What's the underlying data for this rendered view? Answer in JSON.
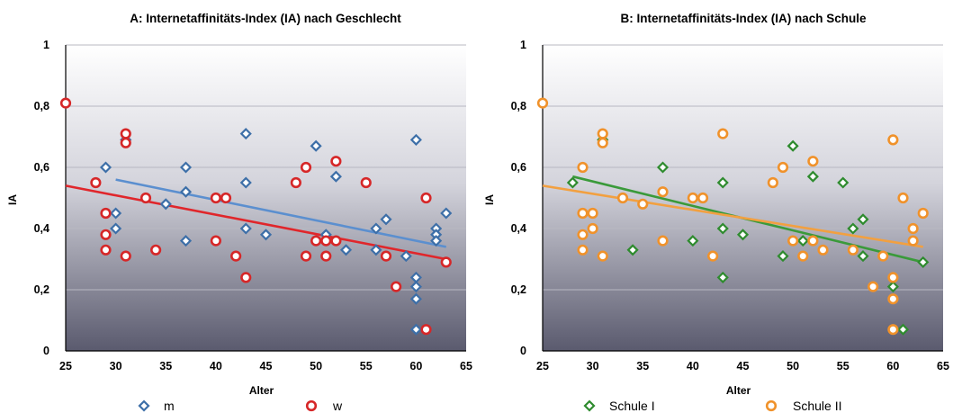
{
  "chart_data": [
    {
      "type": "scatter",
      "title": "A: Internetaffinitäts-Index (IA) nach Geschlecht",
      "xlabel": "Alter",
      "ylabel": "IA",
      "xlim": [
        25,
        65
      ],
      "ylim": [
        0,
        1
      ],
      "xticks": [
        "25",
        "30",
        "35",
        "40",
        "45",
        "50",
        "55",
        "60",
        "65"
      ],
      "yticks": [
        "0",
        "0,2",
        "0,4",
        "0,6",
        "0,8",
        "1"
      ],
      "grid": true,
      "legend": "bottom",
      "series": [
        {
          "name": "m",
          "marker": "diamond",
          "color": "#3d6fa8",
          "trend_color": "#5b8fcf",
          "points": [
            [
              29,
              0.6
            ],
            [
              30,
              0.45
            ],
            [
              30,
              0.4
            ],
            [
              31,
              0.69
            ],
            [
              35,
              0.48
            ],
            [
              37,
              0.6
            ],
            [
              37,
              0.52
            ],
            [
              37,
              0.36
            ],
            [
              43,
              0.71
            ],
            [
              43,
              0.55
            ],
            [
              43,
              0.4
            ],
            [
              45,
              0.38
            ],
            [
              50,
              0.67
            ],
            [
              51,
              0.38
            ],
            [
              52,
              0.57
            ],
            [
              53,
              0.33
            ],
            [
              56,
              0.4
            ],
            [
              56,
              0.33
            ],
            [
              57,
              0.43
            ],
            [
              59,
              0.31
            ],
            [
              60,
              0.69
            ],
            [
              60,
              0.24
            ],
            [
              60,
              0.21
            ],
            [
              60,
              0.17
            ],
            [
              60,
              0.07
            ],
            [
              62,
              0.4
            ],
            [
              62,
              0.38
            ],
            [
              62,
              0.36
            ],
            [
              63,
              0.45
            ]
          ],
          "trend": [
            [
              30,
              0.56
            ],
            [
              63,
              0.34
            ]
          ]
        },
        {
          "name": "w",
          "marker": "circle",
          "color": "#d62728",
          "trend_color": "#e0262b",
          "points": [
            [
              25,
              0.81
            ],
            [
              28,
              0.55
            ],
            [
              29,
              0.45
            ],
            [
              29,
              0.38
            ],
            [
              29,
              0.33
            ],
            [
              31,
              0.71
            ],
            [
              31,
              0.68
            ],
            [
              31,
              0.31
            ],
            [
              33,
              0.5
            ],
            [
              34,
              0.33
            ],
            [
              40,
              0.5
            ],
            [
              40,
              0.36
            ],
            [
              41,
              0.5
            ],
            [
              42,
              0.31
            ],
            [
              43,
              0.24
            ],
            [
              48,
              0.55
            ],
            [
              49,
              0.6
            ],
            [
              49,
              0.31
            ],
            [
              50,
              0.36
            ],
            [
              51,
              0.36
            ],
            [
              51,
              0.31
            ],
            [
              52,
              0.62
            ],
            [
              52,
              0.36
            ],
            [
              55,
              0.55
            ],
            [
              57,
              0.31
            ],
            [
              58,
              0.21
            ],
            [
              61,
              0.5
            ],
            [
              61,
              0.07
            ],
            [
              63,
              0.29
            ]
          ],
          "trend": [
            [
              25,
              0.54
            ],
            [
              63,
              0.3
            ]
          ]
        }
      ]
    },
    {
      "type": "scatter",
      "title": "B: Internetaffinitäts-Index (IA) nach Schule",
      "xlabel": "Alter",
      "ylabel": "IA",
      "xlim": [
        25,
        65
      ],
      "ylim": [
        0,
        1
      ],
      "xticks": [
        "25",
        "30",
        "35",
        "40",
        "45",
        "50",
        "55",
        "60",
        "65"
      ],
      "yticks": [
        "0",
        "0,2",
        "0,4",
        "0,6",
        "0,8",
        "1"
      ],
      "grid": true,
      "legend": "bottom",
      "series": [
        {
          "name": "Schule I",
          "marker": "diamond",
          "color": "#2e8b2e",
          "trend_color": "#3a9a3a",
          "points": [
            [
              28,
              0.55
            ],
            [
              31,
              0.69
            ],
            [
              34,
              0.33
            ],
            [
              37,
              0.6
            ],
            [
              40,
              0.36
            ],
            [
              43,
              0.55
            ],
            [
              43,
              0.4
            ],
            [
              43,
              0.24
            ],
            [
              45,
              0.38
            ],
            [
              49,
              0.31
            ],
            [
              50,
              0.67
            ],
            [
              51,
              0.36
            ],
            [
              52,
              0.57
            ],
            [
              55,
              0.55
            ],
            [
              56,
              0.4
            ],
            [
              57,
              0.43
            ],
            [
              57,
              0.31
            ],
            [
              60,
              0.21
            ],
            [
              61,
              0.07
            ],
            [
              63,
              0.29
            ]
          ],
          "trend": [
            [
              28,
              0.57
            ],
            [
              63,
              0.29
            ]
          ]
        },
        {
          "name": "Schule II",
          "marker": "circle",
          "color": "#f0922b",
          "trend_color": "#f2a040",
          "points": [
            [
              25,
              0.81
            ],
            [
              29,
              0.6
            ],
            [
              29,
              0.45
            ],
            [
              29,
              0.38
            ],
            [
              29,
              0.33
            ],
            [
              30,
              0.45
            ],
            [
              30,
              0.4
            ],
            [
              31,
              0.71
            ],
            [
              31,
              0.68
            ],
            [
              31,
              0.31
            ],
            [
              33,
              0.5
            ],
            [
              35,
              0.48
            ],
            [
              37,
              0.52
            ],
            [
              37,
              0.36
            ],
            [
              40,
              0.5
            ],
            [
              41,
              0.5
            ],
            [
              42,
              0.31
            ],
            [
              43,
              0.71
            ],
            [
              48,
              0.55
            ],
            [
              49,
              0.6
            ],
            [
              50,
              0.36
            ],
            [
              51,
              0.31
            ],
            [
              52,
              0.62
            ],
            [
              52,
              0.36
            ],
            [
              53,
              0.33
            ],
            [
              56,
              0.33
            ],
            [
              58,
              0.21
            ],
            [
              59,
              0.31
            ],
            [
              60,
              0.69
            ],
            [
              60,
              0.24
            ],
            [
              60,
              0.17
            ],
            [
              60,
              0.07
            ],
            [
              61,
              0.5
            ],
            [
              62,
              0.4
            ],
            [
              62,
              0.36
            ],
            [
              63,
              0.45
            ]
          ],
          "trend": [
            [
              25,
              0.54
            ],
            [
              63,
              0.34
            ]
          ]
        }
      ]
    }
  ]
}
